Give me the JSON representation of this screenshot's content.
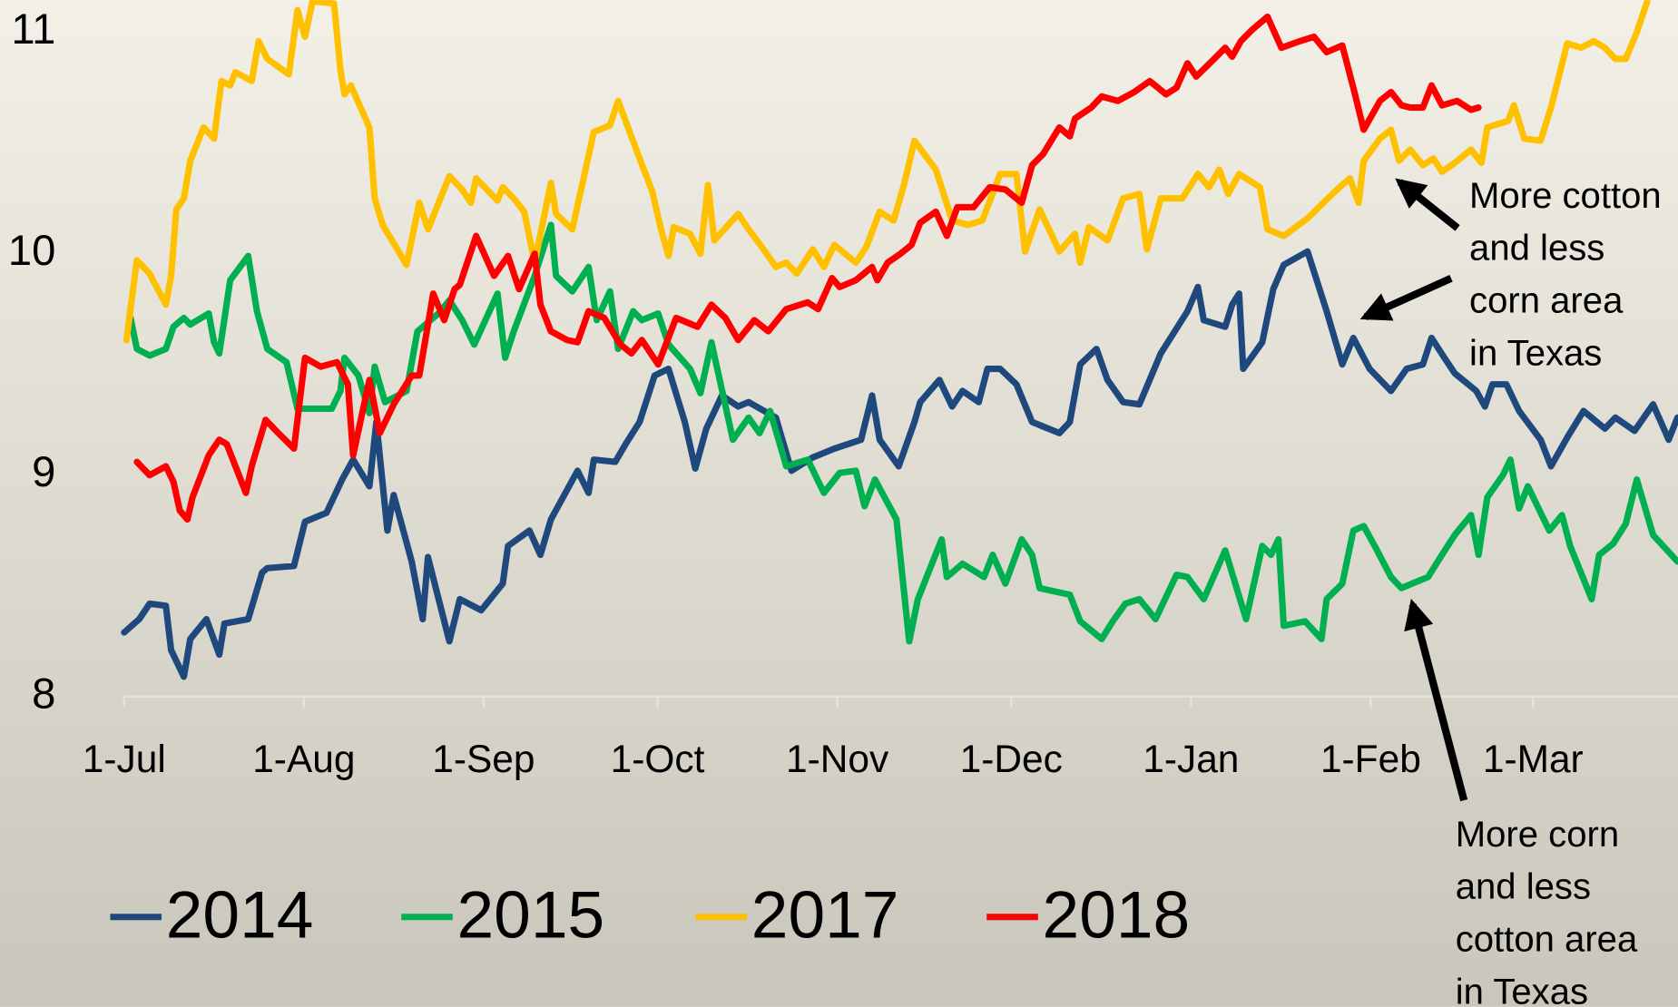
{
  "chart_data": {
    "type": "line",
    "xlim": [
      0,
      268
    ],
    "ylim": [
      8,
      11.145
    ],
    "xticks": [
      {
        "value": 0,
        "label": "1-Jul"
      },
      {
        "value": 31,
        "label": "1-Aug"
      },
      {
        "value": 62,
        "label": "1-Sep"
      },
      {
        "value": 92,
        "label": "1-Oct"
      },
      {
        "value": 123,
        "label": "1-Nov"
      },
      {
        "value": 153,
        "label": "1-Dec"
      },
      {
        "value": 184,
        "label": "1-Jan"
      },
      {
        "value": 215,
        "label": "1-Feb"
      },
      {
        "value": 243,
        "label": "1-Mar"
      }
    ],
    "yticks": [
      8,
      9,
      10,
      11
    ],
    "grid": false,
    "series": [
      {
        "name": "2014",
        "color": "#1f497d",
        "x": [
          0,
          2.6,
          4.4,
          7.2,
          8.1,
          10.3,
          11.4,
          14.2,
          16.4,
          17.3,
          21.4,
          23.8,
          24.7,
          29.3,
          31.2,
          34.9,
          37.6,
          39.5,
          42.3,
          43.5,
          45.4,
          46.5,
          49.6,
          51.5,
          52.4,
          56.1,
          57.9,
          61.6,
          65.3,
          66.2,
          69.9,
          71.8,
          73.6,
          78.2,
          80.1,
          81,
          84.7,
          86.5,
          88.9,
          91.5,
          93.9,
          96.7,
          98.5,
          100.4,
          103.1,
          105.9,
          107.7,
          112.4,
          115.1,
          118.8,
          122.5,
          127.1,
          129,
          130.3,
          133.6,
          136.3,
          137.3,
          140.6,
          142.8,
          144.6,
          147.4,
          148.9,
          151.1,
          153.9,
          156.6,
          159.4,
          161.3,
          163.1,
          164.9,
          167.7,
          169.6,
          172.3,
          175.1,
          178.8,
          183.4,
          185.2,
          186.2,
          189.9,
          191.1,
          192.3,
          193,
          196.3,
          198.2,
          200,
          204.1,
          207.4,
          210.1,
          212,
          214.8,
          218.5,
          221.2,
          224,
          225.5,
          227.7,
          229.5,
          233.2,
          234.7,
          236,
          238.4,
          240.6,
          244.3,
          246.1,
          248.9,
          251.7,
          255.4,
          257.2,
          260.5,
          263.7,
          266.4,
          267.9
        ],
        "values": [
          8.29,
          8.35,
          8.42,
          8.41,
          8.21,
          8.09,
          8.26,
          8.35,
          8.19,
          8.33,
          8.35,
          8.56,
          8.58,
          8.59,
          8.79,
          8.83,
          8.98,
          9.07,
          8.95,
          9.24,
          8.75,
          8.91,
          8.61,
          8.35,
          8.63,
          8.25,
          8.44,
          8.39,
          8.51,
          8.68,
          8.75,
          8.64,
          8.8,
          9.02,
          8.92,
          9.07,
          9.06,
          9.14,
          9.24,
          9.45,
          9.48,
          9.24,
          9.03,
          9.21,
          9.36,
          9.31,
          9.33,
          9.26,
          9.02,
          9.08,
          9.12,
          9.16,
          9.36,
          9.16,
          9.04,
          9.24,
          9.33,
          9.43,
          9.31,
          9.38,
          9.33,
          9.48,
          9.48,
          9.41,
          9.24,
          9.21,
          9.19,
          9.24,
          9.5,
          9.57,
          9.43,
          9.33,
          9.32,
          9.55,
          9.74,
          9.85,
          9.7,
          9.67,
          9.77,
          9.82,
          9.48,
          9.6,
          9.84,
          9.95,
          10.01,
          9.74,
          9.5,
          9.62,
          9.48,
          9.38,
          9.48,
          9.5,
          9.62,
          9.53,
          9.46,
          9.38,
          9.31,
          9.41,
          9.41,
          9.29,
          9.16,
          9.04,
          9.17,
          9.29,
          9.21,
          9.26,
          9.2,
          9.32,
          9.16,
          9.26
        ]
      },
      {
        "name": "2015",
        "color": "#00b050",
        "x": [
          1.1,
          2.2,
          4.4,
          7.2,
          8.5,
          10.3,
          11.4,
          14.6,
          15.5,
          16.4,
          18.3,
          21.4,
          22.9,
          24.7,
          28,
          29.9,
          35.8,
          37.3,
          38,
          40.4,
          42.3,
          43.2,
          45,
          48.7,
          50.6,
          54.2,
          56.1,
          58.3,
          60.4,
          64.4,
          65.7,
          67.2,
          70.8,
          73.6,
          74.5,
          77.3,
          80.1,
          81.5,
          83.8,
          85.2,
          87.8,
          89.3,
          92.1,
          93.9,
          97.6,
          99.4,
          101.3,
          105,
          107.7,
          109.6,
          111.4,
          114.2,
          117.9,
          120.7,
          123.4,
          126.2,
          127.7,
          129.5,
          133.2,
          135.4,
          136.9,
          141,
          141.9,
          144.6,
          148.3,
          149.8,
          152,
          154.8,
          156.6,
          157.9,
          163.1,
          164.9,
          168.6,
          170.5,
          172.7,
          175.1,
          177.9,
          181.5,
          183.4,
          186.2,
          189.9,
          193.5,
          196.3,
          197.8,
          199.1,
          200,
          203.7,
          206.5,
          207.4,
          210.1,
          212,
          213.8,
          215.7,
          218.5,
          220.3,
          222.1,
          224.9,
          226.8,
          229.5,
          232.3,
          233.6,
          235.1,
          237.8,
          239.1,
          240.6,
          242.1,
          245.8,
          248,
          249.4,
          253.1,
          254.4,
          256.8,
          259,
          260.9,
          263.7,
          267.9
        ],
        "values": [
          9.71,
          9.57,
          9.54,
          9.57,
          9.67,
          9.71,
          9.68,
          9.73,
          9.6,
          9.55,
          9.88,
          9.99,
          9.74,
          9.57,
          9.51,
          9.3,
          9.3,
          9.38,
          9.53,
          9.45,
          9.28,
          9.49,
          9.33,
          9.38,
          9.65,
          9.73,
          9.79,
          9.7,
          9.59,
          9.82,
          9.53,
          9.65,
          9.9,
          10.13,
          9.9,
          9.83,
          9.94,
          9.7,
          9.83,
          9.57,
          9.74,
          9.7,
          9.73,
          9.59,
          9.48,
          9.37,
          9.6,
          9.16,
          9.26,
          9.19,
          9.29,
          9.04,
          9.07,
          8.92,
          9.01,
          9.02,
          8.86,
          8.98,
          8.8,
          8.25,
          8.44,
          8.71,
          8.54,
          8.6,
          8.54,
          8.64,
          8.51,
          8.71,
          8.64,
          8.49,
          8.46,
          8.34,
          8.26,
          8.34,
          8.42,
          8.44,
          8.35,
          8.55,
          8.54,
          8.44,
          8.66,
          8.35,
          8.68,
          8.64,
          8.71,
          8.32,
          8.34,
          8.26,
          8.44,
          8.51,
          8.75,
          8.77,
          8.68,
          8.54,
          8.49,
          8.51,
          8.54,
          8.62,
          8.73,
          8.82,
          8.64,
          8.9,
          9.0,
          9.07,
          8.85,
          8.95,
          8.75,
          8.82,
          8.68,
          8.44,
          8.64,
          8.69,
          8.78,
          8.98,
          8.73,
          8.61
        ]
      },
      {
        "name": "2017",
        "color": "#ffc000",
        "x": [
          0.4,
          2.2,
          4.4,
          7.2,
          8.1,
          9,
          10.3,
          11.4,
          13.7,
          15.5,
          16.8,
          18.3,
          19.2,
          22,
          23.2,
          24.7,
          28.4,
          29.9,
          31.2,
          32.5,
          36.2,
          37.3,
          38,
          39.1,
          42.3,
          43.2,
          44.6,
          48.7,
          50.9,
          52.4,
          56.1,
          58.3,
          59.8,
          60.7,
          64.4,
          65.3,
          67.2,
          69,
          70.8,
          73.6,
          74.5,
          77.3,
          81,
          83.8,
          85.2,
          88.9,
          91.1,
          92.6,
          93.9,
          94.8,
          97.6,
          99.4,
          100.7,
          101.8,
          105.9,
          107.7,
          110,
          112.4,
          114.2,
          116,
          118.8,
          120.7,
          122.5,
          126.2,
          128,
          130.3,
          132.7,
          134.5,
          136.3,
          140,
          142.8,
          145.6,
          148,
          151.1,
          153.9,
          155.4,
          157.9,
          161.3,
          164,
          164.9,
          166.4,
          169.6,
          172.3,
          175.1,
          176.4,
          178.8,
          182.5,
          185.2,
          187.1,
          188.9,
          190.4,
          192.3,
          195.9,
          197.2,
          200,
          204.1,
          209.2,
          211.4,
          212.9,
          213.8,
          216.6,
          218.5,
          219.9,
          221.8,
          224,
          225.8,
          227.3,
          229.5,
          232.3,
          234.1,
          235.1,
          238.7,
          239.7,
          241.5,
          244.3,
          246.1,
          248.9,
          251.3,
          253.5,
          255.4,
          257.2,
          259,
          260.9,
          262.7
        ],
        "values": [
          9.61,
          9.97,
          9.91,
          9.77,
          9.9,
          10.2,
          10.25,
          10.42,
          10.57,
          10.52,
          10.78,
          10.76,
          10.82,
          10.78,
          10.96,
          10.88,
          10.81,
          11.1,
          10.98,
          11.14,
          11.13,
          10.83,
          10.72,
          10.76,
          10.57,
          10.25,
          10.13,
          9.95,
          10.23,
          10.11,
          10.35,
          10.29,
          10.23,
          10.34,
          10.24,
          10.3,
          10.25,
          10.19,
          9.96,
          10.32,
          10.18,
          10.11,
          10.55,
          10.58,
          10.69,
          10.43,
          10.28,
          10.11,
          9.99,
          10.12,
          10.09,
          10.0,
          10.31,
          10.06,
          10.18,
          10.11,
          10.03,
          9.94,
          9.96,
          9.91,
          10.02,
          9.94,
          10.04,
          9.96,
          10.03,
          10.19,
          10.15,
          10.31,
          10.51,
          10.38,
          10.15,
          10.13,
          10.15,
          10.36,
          10.36,
          10.01,
          10.2,
          10.01,
          10.09,
          9.96,
          10.12,
          10.06,
          10.25,
          10.27,
          10.02,
          10.25,
          10.25,
          10.36,
          10.3,
          10.38,
          10.27,
          10.36,
          10.3,
          10.11,
          10.08,
          10.16,
          10.29,
          10.34,
          10.23,
          10.42,
          10.52,
          10.56,
          10.42,
          10.47,
          10.4,
          10.43,
          10.37,
          10.41,
          10.47,
          10.41,
          10.57,
          10.6,
          10.67,
          10.52,
          10.51,
          10.66,
          10.95,
          10.93,
          10.96,
          10.93,
          10.88,
          10.88,
          11.0,
          11.14
        ]
      },
      {
        "name": "2018",
        "color": "#ff0000",
        "x": [
          2.2,
          4.4,
          7.2,
          8.5,
          9.6,
          10.9,
          11.8,
          14.6,
          16.4,
          17.7,
          21,
          22,
          24.4,
          26.6,
          29.3,
          31.2,
          33.9,
          36.7,
          38.6,
          39.5,
          42.3,
          44.1,
          46.5,
          49.6,
          50.9,
          53.3,
          55.2,
          57,
          57.9,
          60.7,
          63.8,
          66.2,
          68.1,
          70.8,
          71.8,
          73.6,
          76.4,
          78.2,
          80.1,
          82.8,
          85.6,
          87.5,
          89.3,
          92.1,
          95.2,
          98.9,
          101.3,
          103.7,
          105.9,
          108.7,
          111.1,
          114.2,
          117.9,
          119.7,
          122.1,
          123.4,
          126.2,
          129,
          129.9,
          131.7,
          133.9,
          135.8,
          137.3,
          140,
          141.9,
          143.7,
          146.5,
          149.3,
          152,
          154.8,
          156.6,
          158.5,
          161.3,
          163.1,
          164,
          166.8,
          168.6,
          171.4,
          174.2,
          176.9,
          179.7,
          181.5,
          183.4,
          184.9,
          188,
          189.9,
          191.1,
          192.6,
          194.5,
          197.2,
          199.6,
          202.8,
          205.2,
          207.4,
          210.1,
          212,
          213.8,
          216.6,
          218.5,
          220.3,
          221.8,
          224,
          225.5,
          227.3,
          229.9,
          232.3,
          233.6
        ],
        "values": [
          9.06,
          9.0,
          9.04,
          8.97,
          8.84,
          8.8,
          8.9,
          9.09,
          9.16,
          9.14,
          8.92,
          9.04,
          9.25,
          9.19,
          9.12,
          9.53,
          9.49,
          9.51,
          9.41,
          9.09,
          9.43,
          9.19,
          9.32,
          9.45,
          9.45,
          9.82,
          9.7,
          9.84,
          9.86,
          10.08,
          9.9,
          9.99,
          9.84,
          10.0,
          9.77,
          9.65,
          9.61,
          9.6,
          9.74,
          9.71,
          9.59,
          9.55,
          9.61,
          9.5,
          9.71,
          9.67,
          9.77,
          9.71,
          9.61,
          9.7,
          9.65,
          9.75,
          9.78,
          9.75,
          9.89,
          9.85,
          9.88,
          9.94,
          9.88,
          9.96,
          10.0,
          10.04,
          10.14,
          10.19,
          10.08,
          10.21,
          10.21,
          10.3,
          10.29,
          10.23,
          10.4,
          10.45,
          10.57,
          10.53,
          10.61,
          10.66,
          10.71,
          10.69,
          10.73,
          10.78,
          10.72,
          10.75,
          10.86,
          10.8,
          10.88,
          10.93,
          10.89,
          10.96,
          11.01,
          11.07,
          10.93,
          10.96,
          10.98,
          10.91,
          10.94,
          10.75,
          10.56,
          10.69,
          10.73,
          10.67,
          10.66,
          10.66,
          10.76,
          10.67,
          10.69,
          10.65,
          10.66
        ]
      }
    ],
    "annotations": [
      {
        "text": [
          "More cotton",
          "and less",
          "corn area",
          "in Texas"
        ]
      },
      {
        "text": [
          "More corn",
          "and less",
          "cotton area",
          "in Texas"
        ]
      }
    ]
  }
}
